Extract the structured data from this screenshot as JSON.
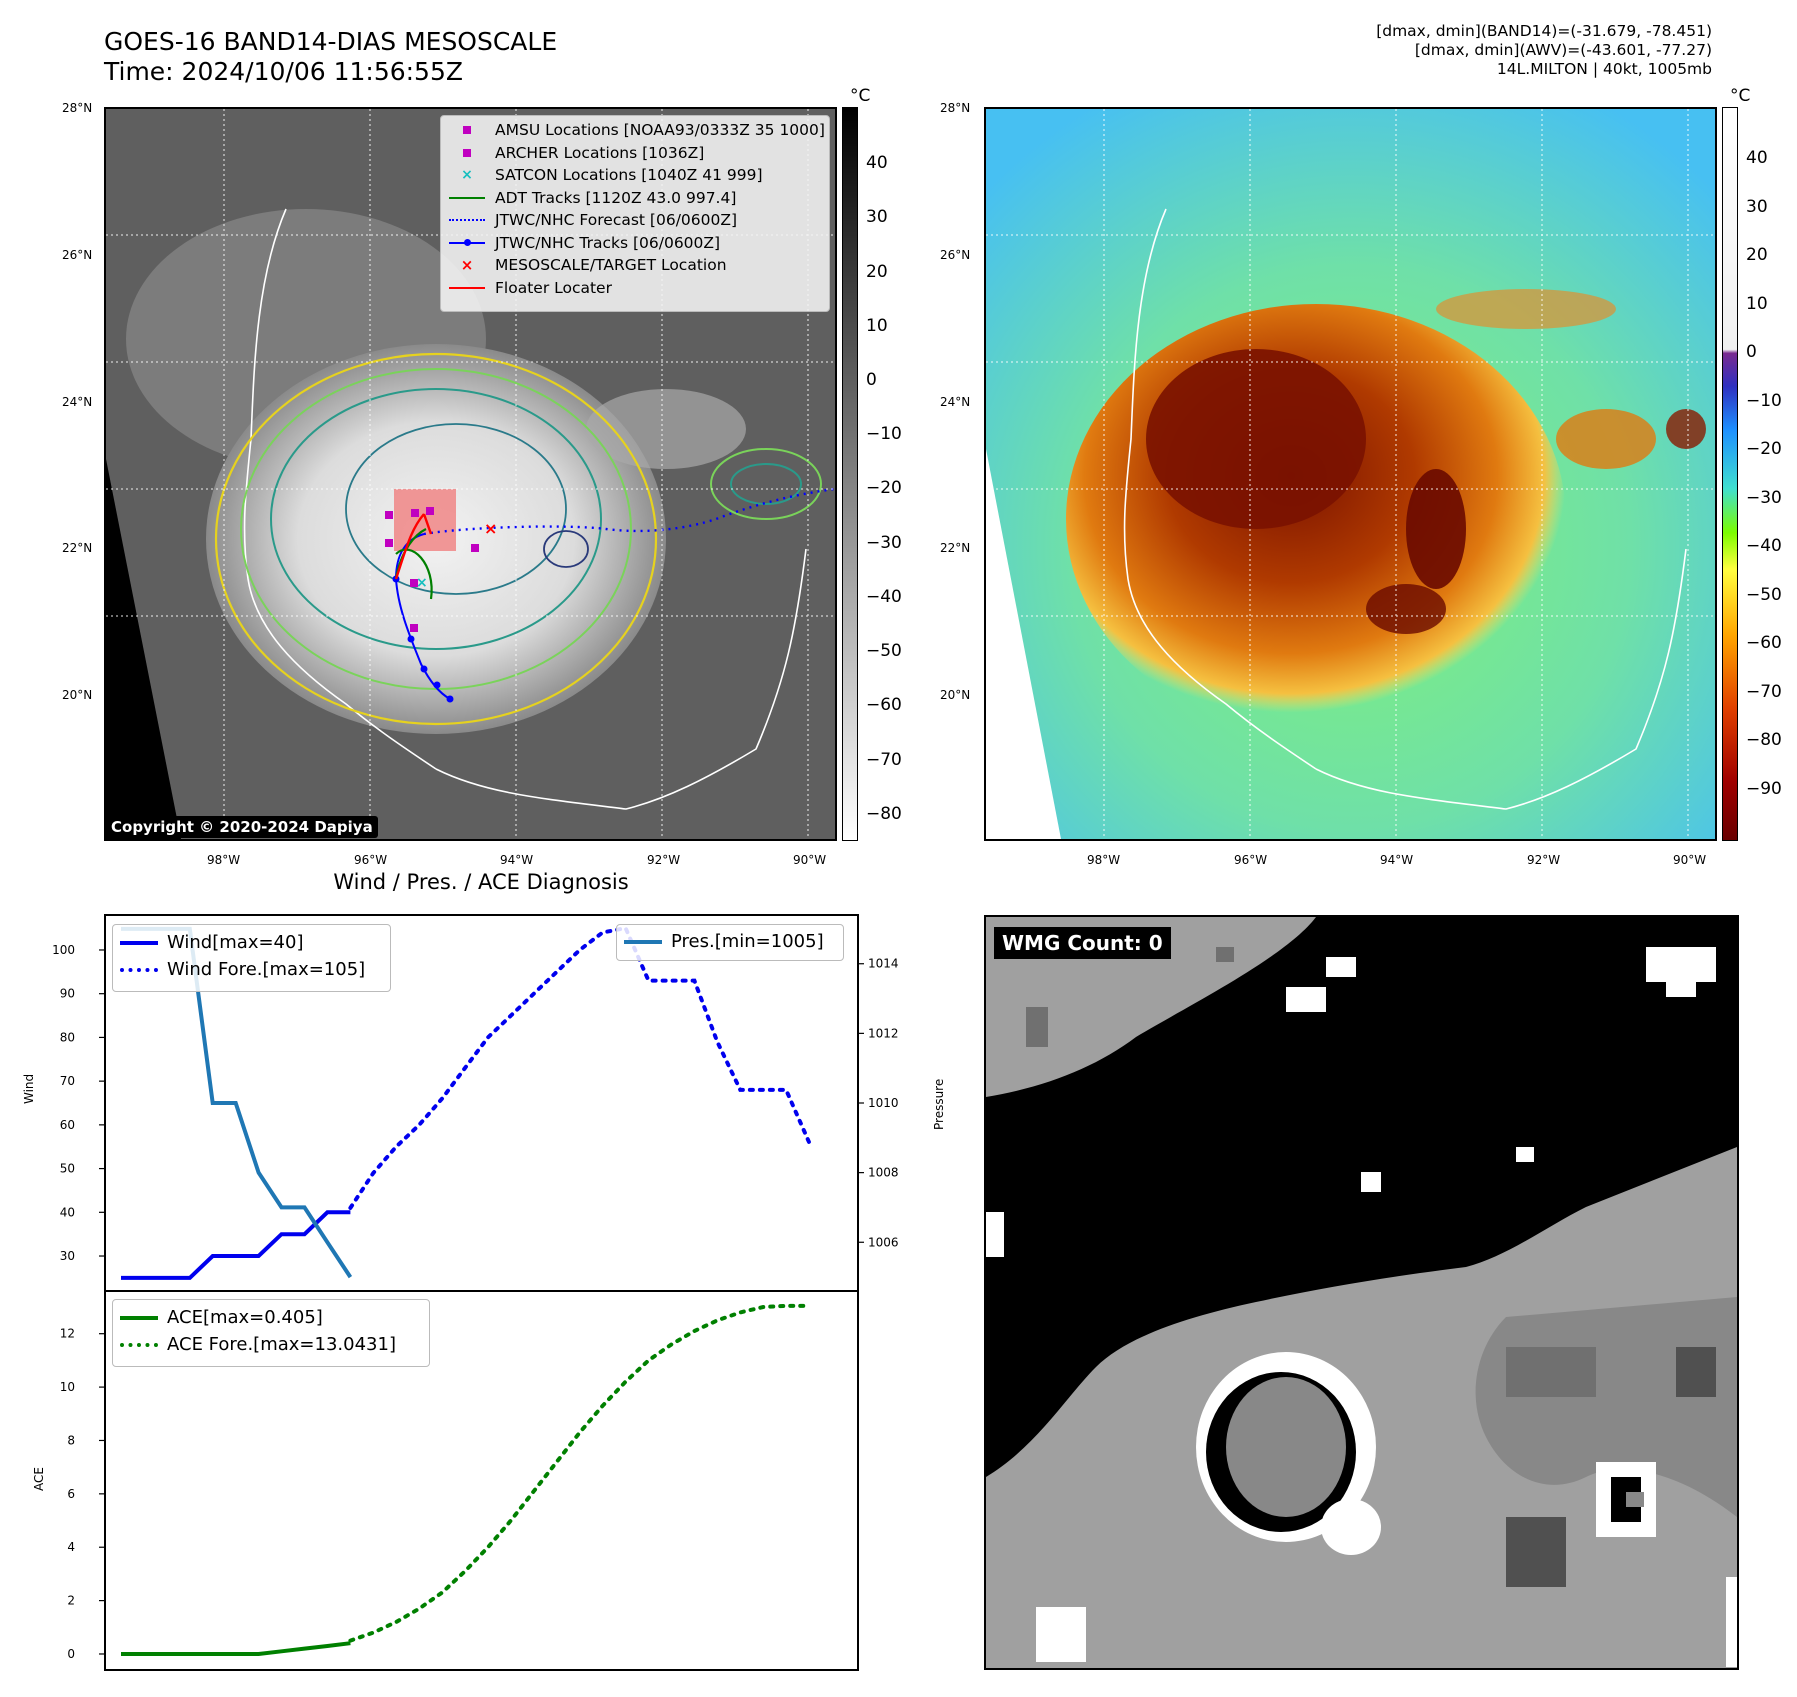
{
  "header": {
    "title_line1": "GOES-16 BAND14-DIAS MESOSCALE",
    "title_line2": "Time: 2024/10/06 11:56:55Z",
    "info_line1": "[dmax, dmin](BAND14)=(-31.679, -78.451)",
    "info_line2": "[dmax, dmin](AWV)=(-43.601, -77.27)",
    "info_line3": "14L.MILTON | 40kt, 1005mb"
  },
  "map_axes": {
    "lat_labels": [
      "28°N",
      "26°N",
      "24°N",
      "22°N",
      "20°N"
    ],
    "lon_labels": [
      "98°W",
      "96°W",
      "94°W",
      "92°W",
      "90°W"
    ]
  },
  "ir_panel": {
    "colorbar_unit": "°C",
    "colorbar_ticks": [
      "40",
      "30",
      "20",
      "10",
      "0",
      "−10",
      "−20",
      "−30",
      "−40",
      "−50",
      "−60",
      "−70",
      "−80"
    ],
    "legend": [
      {
        "label": "AMSU Locations [NOAA93/0333Z 35 1000]",
        "icon": "magenta-square",
        "color": "#c000c0"
      },
      {
        "label": "ARCHER Locations [1036Z]",
        "icon": "magenta-square",
        "color": "#c000c0"
      },
      {
        "label": "SATCON Locations [1040Z 41 999]",
        "icon": "cyan-x",
        "color": "#17bfbf"
      },
      {
        "label": "ADT Tracks [1120Z 43.0 997.4]",
        "icon": "green-line",
        "color": "#008000"
      },
      {
        "label": "JTWC/NHC Forecast [06/0600Z]",
        "icon": "blue-dotted-line",
        "color": "#0000ff"
      },
      {
        "label": "JTWC/NHC Tracks [06/0600Z]",
        "icon": "blue-dot-line",
        "color": "#0000ff"
      },
      {
        "label": "MESOSCALE/TARGET Location",
        "icon": "red-x",
        "color": "#ff0000"
      },
      {
        "label": "Floater Locater",
        "icon": "red-line",
        "color": "#ff0000"
      }
    ],
    "copyright": "Copyright © 2020-2024 Dapiya"
  },
  "awv_panel": {
    "colorbar_unit": "°C",
    "colorbar_ticks": [
      "40",
      "30",
      "20",
      "10",
      "0",
      "−10",
      "−20",
      "−30",
      "−40",
      "−50",
      "−60",
      "−70",
      "−80",
      "−90"
    ]
  },
  "wmg_panel": {
    "label": "WMG Count: 0"
  },
  "chart_data": [
    {
      "type": "line",
      "title": "Wind / Pres. / ACE Diagnosis",
      "xlabel": "",
      "ylabel": "Wind",
      "y2label": "Pressure",
      "ylim": [
        22,
        108
      ],
      "y2lim": [
        1004.6,
        1015.4
      ],
      "yticks": [
        30,
        40,
        50,
        60,
        70,
        80,
        90,
        100
      ],
      "y2ticks": [
        1006,
        1008,
        1010,
        1012,
        1014
      ],
      "x_range": [
        0,
        31
      ],
      "series": [
        {
          "name": "Wind[max=40]",
          "axis": "left",
          "style": "solid",
          "color": "#0000ee",
          "x": [
            0,
            1,
            2,
            3,
            4,
            5,
            6,
            7,
            8,
            9,
            10
          ],
          "values": [
            25,
            25,
            25,
            25,
            30,
            30,
            30,
            35,
            35,
            40,
            40
          ]
        },
        {
          "name": "Wind Fore.[max=105]",
          "axis": "left",
          "style": "dotted",
          "color": "#0000ee",
          "x": [
            10,
            11,
            12,
            13,
            14,
            15,
            16,
            17,
            18,
            19,
            20,
            21,
            22,
            23,
            24,
            25,
            26,
            27,
            28,
            29,
            30
          ],
          "values": [
            41,
            49,
            55,
            60,
            66,
            73,
            80,
            85,
            90,
            95,
            100,
            104,
            105,
            93,
            93,
            93,
            79,
            68,
            68,
            68,
            56
          ]
        },
        {
          "name": "Pres.[min=1005]",
          "axis": "right",
          "style": "solid",
          "color": "#1f77b4",
          "x": [
            0,
            1,
            2,
            3,
            4,
            5,
            6,
            7,
            8,
            9,
            10
          ],
          "values": [
            1015,
            1015,
            1015,
            1015,
            1010,
            1010,
            1008,
            1007,
            1007,
            1006,
            1005
          ]
        }
      ]
    },
    {
      "type": "line",
      "title": "",
      "xlabel": "",
      "ylabel": "ACE",
      "ylim": [
        -0.6,
        13.6
      ],
      "yticks": [
        0,
        2,
        4,
        6,
        8,
        10,
        12
      ],
      "x_range": [
        0,
        31
      ],
      "series": [
        {
          "name": "ACE[max=0.405]",
          "style": "solid",
          "color": "#008000",
          "x": [
            0,
            1,
            2,
            3,
            4,
            5,
            6,
            7,
            8,
            9,
            10
          ],
          "values": [
            0,
            0,
            0,
            0,
            0,
            0,
            0,
            0.1,
            0.2,
            0.3,
            0.405
          ]
        },
        {
          "name": "ACE Fore.[max=13.0431]",
          "style": "dotted",
          "color": "#008000",
          "x": [
            10,
            11,
            12,
            13,
            14,
            15,
            16,
            17,
            18,
            19,
            20,
            21,
            22,
            23,
            24,
            25,
            26,
            27,
            28,
            29,
            30
          ],
          "values": [
            0.5,
            0.8,
            1.2,
            1.7,
            2.3,
            3.1,
            4.0,
            5.0,
            6.1,
            7.2,
            8.3,
            9.3,
            10.2,
            11.0,
            11.6,
            12.1,
            12.5,
            12.8,
            13.0,
            13.0431,
            13.0431
          ]
        }
      ]
    }
  ]
}
